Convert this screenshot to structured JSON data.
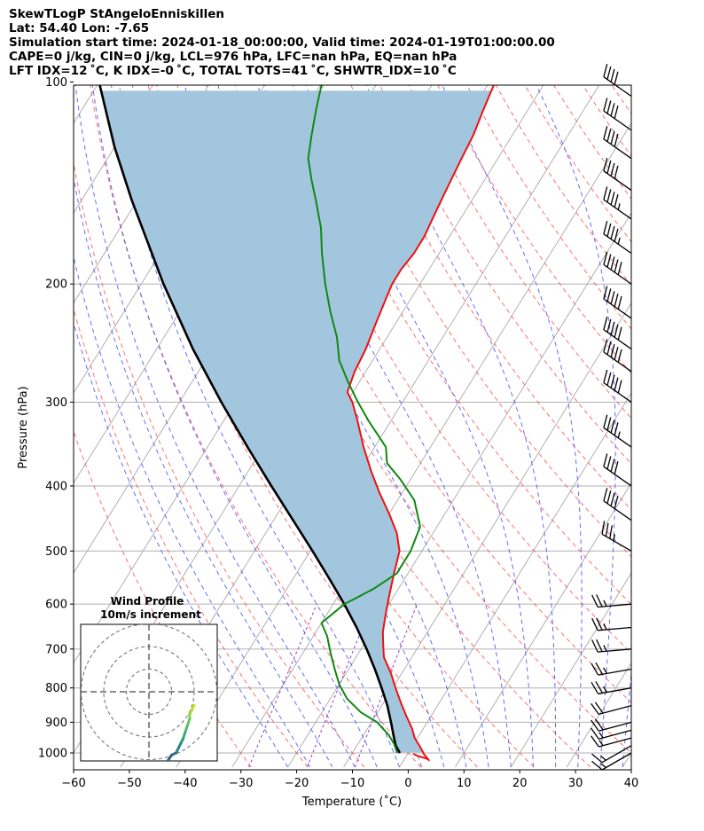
{
  "header": {
    "line1": "SkewTLogP StAngeloEnniskillen",
    "line2": "Lat: 54.40   Lon: -7.65",
    "line3": "Simulation start time: 2024-01-18_00:00:00, Valid time: 2024-01-19T01:00:00.00",
    "line4": "CAPE=0 j/kg, CIN=0 j/kg, LCL=976 hPa, LFC=nan hPa, EQ=nan hPa",
    "line5": "LFT IDX=12 ˚C, K IDX=-0 ˚C, TOTAL TOTS=41 ˚C, SHWTR_IDX=10 ˚C"
  },
  "chart_data": {
    "type": "skew-t",
    "xlabel": "Temperature (˚C)",
    "ylabel": "Pressure (hPa)",
    "xlim": [
      -60,
      40
    ],
    "ylim": [
      1040,
      100
    ],
    "xticks": [
      -60,
      -50,
      -40,
      -30,
      -20,
      -10,
      0,
      10,
      20,
      30,
      40
    ],
    "yticks": [
      100,
      200,
      300,
      400,
      500,
      600,
      700,
      800,
      900,
      1000
    ],
    "grid": true,
    "colors": {
      "temperature": "#ee1111",
      "dewpoint": "#118811",
      "parcel": "#000000",
      "cape_fill": "#a3c6df",
      "dry_adiabat": "#ff5555",
      "moist_adiabat": "#4455ff",
      "mixing_ratio": "#9933cc",
      "isotherm": "#999999"
    },
    "temperature_profile": {
      "pressure": [
        1003,
        1010,
        1020,
        1025,
        1005,
        980,
        950,
        920,
        880,
        840,
        800,
        760,
        720,
        690,
        660,
        620,
        580,
        540,
        500,
        470,
        440,
        410,
        380,
        350,
        320,
        300,
        290,
        270,
        250,
        230,
        210,
        200,
        190,
        180,
        170,
        160,
        150,
        140,
        130,
        120,
        110,
        100
      ],
      "temperature": [
        1,
        2,
        4,
        4.5,
        3,
        1.5,
        -0.5,
        -2,
        -4.5,
        -7,
        -9.5,
        -12,
        -15,
        -16.5,
        -18,
        -19.5,
        -21,
        -22.5,
        -24,
        -26.5,
        -30,
        -34,
        -38,
        -42,
        -46,
        -49,
        -51,
        -52,
        -52.5,
        -53.5,
        -54.5,
        -55,
        -55,
        -54.5,
        -54.5,
        -55,
        -55.5,
        -56,
        -56.5,
        -57,
        -58,
        -59
      ]
    },
    "dewpoint_profile": {
      "pressure": [
        1000,
        970,
        940,
        900,
        870,
        830,
        790,
        750,
        710,
        670,
        640,
        600,
        570,
        540,
        500,
        460,
        420,
        390,
        370,
        350,
        320,
        300,
        280,
        260,
        240,
        220,
        200,
        180,
        165,
        150,
        140,
        130,
        120,
        110,
        100
      ],
      "temperature": [
        -2,
        -3.5,
        -5.5,
        -9,
        -13,
        -17,
        -20,
        -22.5,
        -25,
        -27.5,
        -30,
        -28,
        -24.5,
        -22,
        -22,
        -23,
        -27,
        -32,
        -36,
        -38,
        -44,
        -48,
        -52,
        -56,
        -59,
        -63,
        -67,
        -71,
        -74,
        -78,
        -81,
        -84,
        -86,
        -88,
        -90
      ]
    },
    "parcel_profile": {
      "pressure": [
        1000,
        976,
        950,
        900,
        850,
        800,
        750,
        700,
        650,
        600,
        550,
        500,
        450,
        400,
        350,
        300,
        250,
        200,
        150,
        125,
        100
      ],
      "temperature": [
        -1.5,
        -3,
        -4.2,
        -6.5,
        -9,
        -12,
        -15.3,
        -19,
        -23.2,
        -28,
        -33.5,
        -39.6,
        -46.5,
        -54.2,
        -62.8,
        -72.5,
        -83.5,
        -96,
        -111,
        -120,
        -130
      ]
    },
    "wind_barbs": [
      {
        "pressure": 1000,
        "speed_kt": 15,
        "direction_deg": 240
      },
      {
        "pressure": 975,
        "speed_kt": 15,
        "direction_deg": 240
      },
      {
        "pressure": 950,
        "speed_kt": 15,
        "direction_deg": 255
      },
      {
        "pressure": 925,
        "speed_kt": 15,
        "direction_deg": 255
      },
      {
        "pressure": 900,
        "speed_kt": 20,
        "direction_deg": 255
      },
      {
        "pressure": 850,
        "speed_kt": 20,
        "direction_deg": 255
      },
      {
        "pressure": 800,
        "speed_kt": 25,
        "direction_deg": 260
      },
      {
        "pressure": 750,
        "speed_kt": 25,
        "direction_deg": 260
      },
      {
        "pressure": 700,
        "speed_kt": 25,
        "direction_deg": 265
      },
      {
        "pressure": 650,
        "speed_kt": 25,
        "direction_deg": 265
      },
      {
        "pressure": 600,
        "speed_kt": 25,
        "direction_deg": 265
      },
      {
        "pressure": 500,
        "speed_kt": 35,
        "direction_deg": 300
      },
      {
        "pressure": 450,
        "speed_kt": 40,
        "direction_deg": 305
      },
      {
        "pressure": 400,
        "speed_kt": 40,
        "direction_deg": 305
      },
      {
        "pressure": 350,
        "speed_kt": 45,
        "direction_deg": 305
      },
      {
        "pressure": 300,
        "speed_kt": 50,
        "direction_deg": 305
      },
      {
        "pressure": 270,
        "speed_kt": 50,
        "direction_deg": 305
      },
      {
        "pressure": 250,
        "speed_kt": 50,
        "direction_deg": 305
      },
      {
        "pressure": 225,
        "speed_kt": 50,
        "direction_deg": 305
      },
      {
        "pressure": 200,
        "speed_kt": 50,
        "direction_deg": 305
      },
      {
        "pressure": 180,
        "speed_kt": 45,
        "direction_deg": 305
      },
      {
        "pressure": 160,
        "speed_kt": 45,
        "direction_deg": 305
      },
      {
        "pressure": 145,
        "speed_kt": 40,
        "direction_deg": 305
      },
      {
        "pressure": 130,
        "speed_kt": 40,
        "direction_deg": 305
      },
      {
        "pressure": 118,
        "speed_kt": 40,
        "direction_deg": 305
      },
      {
        "pressure": 105,
        "speed_kt": 40,
        "direction_deg": 305
      }
    ],
    "inset": {
      "title": "Wind Profile",
      "subtitle": "10m/s increment",
      "type": "hodograph",
      "rings_ms": [
        10,
        20,
        30
      ],
      "u_ms": [
        20,
        19,
        18,
        18,
        17,
        16,
        15,
        14,
        12,
        10,
        8,
        5,
        2,
        0.5,
        0
      ],
      "v_ms": [
        -6,
        -8,
        -10,
        -12,
        -15,
        -18,
        -21,
        -23,
        -27,
        -28,
        -31,
        -34,
        -36,
        -36,
        -36
      ],
      "color_start": "#d2e21b",
      "color_end": "#440154"
    }
  }
}
